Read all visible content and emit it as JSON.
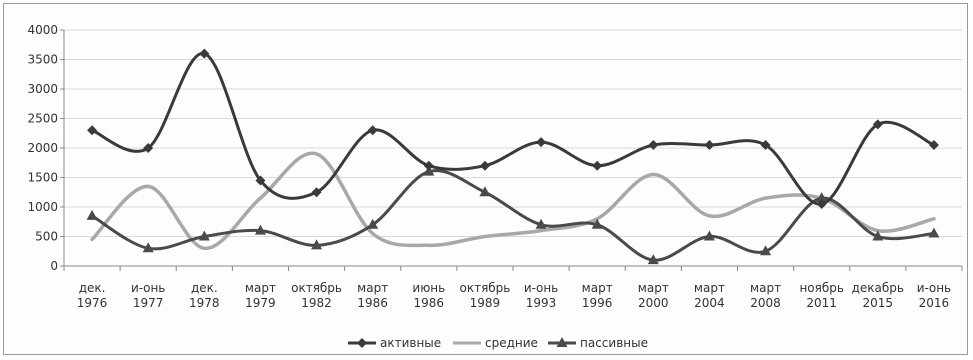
{
  "chart_data": {
    "type": "line",
    "categories": [
      [
        "дек.",
        "1976"
      ],
      [
        "и-онь",
        "1977"
      ],
      [
        "дек.",
        "1978"
      ],
      [
        "март",
        "1979"
      ],
      [
        "октябрь",
        "1982"
      ],
      [
        "март",
        "1986"
      ],
      [
        "июнь",
        "1986"
      ],
      [
        "октябрь",
        "1989"
      ],
      [
        "и-онь",
        "1993"
      ],
      [
        "март",
        "1996"
      ],
      [
        "март",
        "2000"
      ],
      [
        "март",
        "2004"
      ],
      [
        "март",
        "2008"
      ],
      [
        "ноябрь",
        "2011"
      ],
      [
        "декабрь",
        "2015"
      ],
      [
        "и-онь",
        "2016"
      ]
    ],
    "series": [
      {
        "name": "активные",
        "color": "#3a3a3a",
        "marker": "diamond",
        "values": [
          2300,
          2000,
          3600,
          1450,
          1250,
          2300,
          1700,
          1700,
          2100,
          1700,
          2050,
          2050,
          2050,
          1050,
          2400,
          2050
        ]
      },
      {
        "name": "средние",
        "color": "#a8a8a8",
        "marker": "none",
        "values": [
          450,
          1350,
          300,
          1150,
          1900,
          550,
          350,
          500,
          600,
          800,
          1550,
          850,
          1150,
          1150,
          600,
          800
        ]
      },
      {
        "name": "пассивные",
        "color": "#4a4a4a",
        "marker": "triangle",
        "values": [
          850,
          300,
          500,
          600,
          350,
          700,
          1600,
          1250,
          700,
          700,
          100,
          500,
          250,
          1150,
          500,
          550
        ]
      }
    ],
    "yticks": [
      0,
      500,
      1000,
      1500,
      2000,
      2500,
      3000,
      3500,
      4000
    ],
    "ylim": [
      0,
      4000
    ],
    "legend_position": "bottom-center",
    "grid": "horizontal"
  }
}
